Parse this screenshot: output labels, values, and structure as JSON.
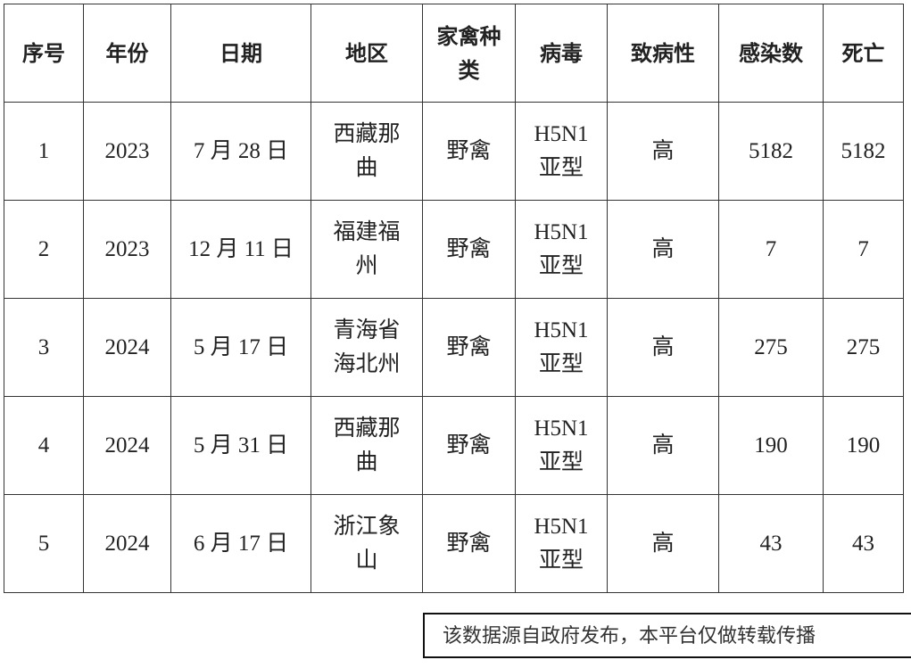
{
  "table": {
    "headers": [
      "序号",
      "年份",
      "日期",
      "地区",
      "家禽种类",
      "病毒",
      "致病性",
      "感染数",
      "死亡"
    ],
    "rows": [
      [
        "1",
        "2023",
        "7 月 28 日",
        "西藏那曲",
        "野禽",
        "H5N1亚型",
        "高",
        "5182",
        "5182"
      ],
      [
        "2",
        "2023",
        "12 月 11 日",
        "福建福州",
        "野禽",
        "H5N1亚型",
        "高",
        "7",
        "7"
      ],
      [
        "3",
        "2024",
        "5 月 17 日",
        "青海省海北州",
        "野禽",
        "H5N1亚型",
        "高",
        "275",
        "275"
      ],
      [
        "4",
        "2024",
        "5 月 31 日",
        "西藏那曲",
        "野禽",
        "H5N1亚型",
        "高",
        "190",
        "190"
      ],
      [
        "5",
        "2024",
        "6 月 17 日",
        "浙江象山",
        "野禽",
        "H5N1亚型",
        "高",
        "43",
        "43"
      ]
    ]
  },
  "footer_note": "该数据源自政府发布，本平台仅做转载传播"
}
